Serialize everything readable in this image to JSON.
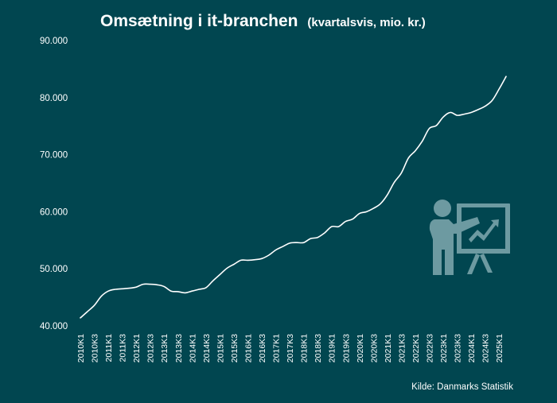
{
  "page": {
    "title": "Omsætning i it-branchen",
    "subtitle": "(kvartalsvis, mio. kr.)",
    "source": "Kilde: Danmarks Statistik"
  },
  "colors": {
    "background": "#014650",
    "line": "#ffffff",
    "icon": "#6d9aa1"
  },
  "icon": "presentation-chart-icon",
  "chart_data": {
    "type": "line",
    "title": "Omsætning i it-branchen",
    "subtitle": "(kvartalsvis, mio. kr.)",
    "xlabel": "",
    "ylabel": "",
    "ylim": [
      40000,
      90000
    ],
    "yticks": [
      "40.000",
      "50.000",
      "60.000",
      "70.000",
      "80.000",
      "90.000"
    ],
    "xtick_labels": [
      "2010K1",
      "2010K3",
      "2011K1",
      "2011K3",
      "2012K1",
      "2012K3",
      "2013K1",
      "2013K3",
      "2014K1",
      "2014K3",
      "2015K1",
      "2015K3",
      "2016K1",
      "2016K3",
      "2017K1",
      "2017K3",
      "2018K1",
      "2018K3",
      "2019K1",
      "2019K3",
      "2020K1",
      "2020K3",
      "2021K1",
      "2021K3",
      "2022K1",
      "2022K3",
      "2023K1",
      "2023K3",
      "2024K1",
      "2024K3",
      "2025K1"
    ],
    "grid": false,
    "legend": "none",
    "x": [
      "2010K1",
      "2010K2",
      "2010K3",
      "2010K4",
      "2011K1",
      "2011K2",
      "2011K3",
      "2011K4",
      "2012K1",
      "2012K2",
      "2012K3",
      "2012K4",
      "2013K1",
      "2013K2",
      "2013K3",
      "2013K4",
      "2014K1",
      "2014K2",
      "2014K3",
      "2014K4",
      "2015K1",
      "2015K2",
      "2015K3",
      "2015K4",
      "2016K1",
      "2016K2",
      "2016K3",
      "2016K4",
      "2017K1",
      "2017K2",
      "2017K3",
      "2017K4",
      "2018K1",
      "2018K2",
      "2018K3",
      "2018K4",
      "2019K1",
      "2019K2",
      "2019K3",
      "2019K4",
      "2020K1",
      "2020K2",
      "2020K3",
      "2020K4",
      "2021K1",
      "2021K2",
      "2021K3",
      "2021K4",
      "2022K1",
      "2022K2",
      "2022K3",
      "2022K4",
      "2023K1",
      "2023K2",
      "2023K3",
      "2023K4",
      "2024K1",
      "2024K2",
      "2024K3",
      "2024K4",
      "2025K1",
      "2025K2"
    ],
    "values": [
      41400,
      42500,
      43600,
      45200,
      46100,
      46400,
      46500,
      46600,
      46800,
      47300,
      47300,
      47200,
      46900,
      46100,
      46000,
      45800,
      46100,
      46400,
      46700,
      47900,
      49000,
      50100,
      50800,
      51500,
      51500,
      51600,
      51800,
      52400,
      53300,
      53900,
      54500,
      54600,
      54600,
      55300,
      55500,
      56300,
      57400,
      57400,
      58300,
      58700,
      59700,
      60000,
      60600,
      61400,
      63000,
      65200,
      66800,
      69400,
      70700,
      72400,
      74600,
      75100,
      76600,
      77400,
      76900,
      77100,
      77400,
      77900,
      78500,
      79500,
      81500,
      83700
    ]
  }
}
